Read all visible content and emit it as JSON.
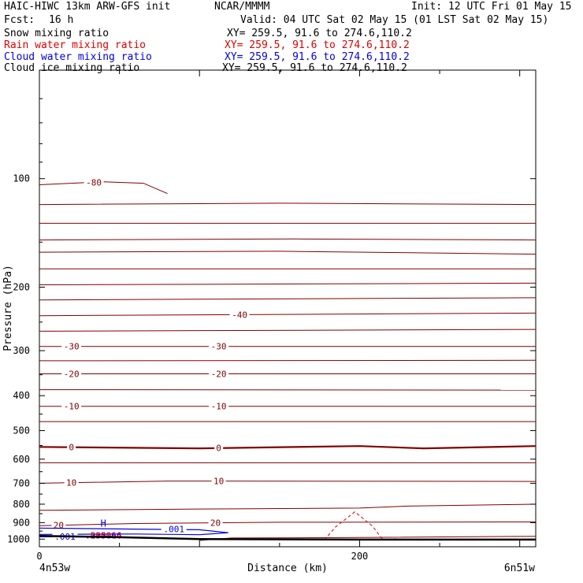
{
  "header": {
    "model_title": "HAIC-HIWC 13km ARW-GFS init",
    "org": "NCAR/MMMM",
    "init_text": "Init: 12 UTC Fri 01 May 15",
    "fcst_label": "Fcst:",
    "fcst_value": "16 h",
    "valid_text": "Valid: 04 UTC Sat 02 May 15 (01 LST Sat 02 May 15)",
    "fields": [
      {
        "name": "Snow mixing ratio",
        "xy": "XY= 259.5, 91.6 to 274.6,110.2",
        "color": "#000000"
      },
      {
        "name": "Rain water mixing ratio",
        "xy": "XY= 259.5, 91.6 to 274.6,110.2",
        "color": "#e00000"
      },
      {
        "name": "Cloud water mixing ratio",
        "xy": "XY= 259.5, 91.6 to 274.6,110.2",
        "color": "#0000e0"
      },
      {
        "name": "Cloud ice mixing ratio",
        "xy": "XY= 259.5, 91.6 to 274.6,110.2",
        "color": "#000000"
      }
    ]
  },
  "chart_data": {
    "type": "cross-section contour",
    "xlabel": "Distance (km)",
    "ylabel": "Pressure (hPa)",
    "xlim": [
      0,
      310
    ],
    "ylim": [
      1050,
      50
    ],
    "yscale": "log",
    "xticks": [
      0,
      200
    ],
    "yticks": [
      100,
      200,
      300,
      400,
      500,
      600,
      700,
      800,
      900,
      1000
    ],
    "left_endpoint": "4n53w",
    "right_endpoint": "6n51w",
    "colors": {
      "temperature": "#800000",
      "rain": "#e00000",
      "cloud_water": "#0000e0",
      "terrain": "#000000"
    },
    "temperature_contours": [
      {
        "value": -80,
        "label": "-80",
        "points": [
          [
            0,
            104
          ],
          [
            40,
            102
          ],
          [
            65,
            103
          ],
          [
            80,
            110
          ]
        ]
      },
      {
        "value": -70,
        "points": [
          [
            0,
            118
          ],
          [
            150,
            117
          ],
          [
            310,
            118
          ]
        ]
      },
      {
        "value": -65,
        "points": [
          [
            0,
            133
          ],
          [
            310,
            133
          ]
        ]
      },
      {
        "value": -60,
        "points": [
          [
            0,
            148
          ],
          [
            160,
            147
          ],
          [
            310,
            148
          ]
        ]
      },
      {
        "value": -55,
        "points": [
          [
            0,
            160
          ],
          [
            150,
            159
          ],
          [
            310,
            162
          ]
        ]
      },
      {
        "value": -50,
        "points": [
          [
            0,
            178
          ],
          [
            310,
            178
          ]
        ]
      },
      {
        "value": -45,
        "points": [
          [
            0,
            197
          ],
          [
            310,
            195
          ]
        ]
      },
      {
        "value": -42,
        "points": [
          [
            0,
            217
          ],
          [
            310,
            214
          ]
        ]
      },
      {
        "value": -40,
        "label": "-40",
        "points": [
          [
            0,
            240
          ],
          [
            310,
            236
          ]
        ]
      },
      {
        "value": -35,
        "points": [
          [
            0,
            265
          ],
          [
            310,
            262
          ]
        ]
      },
      {
        "value": -30,
        "label": "-30",
        "points": [
          [
            0,
            292
          ],
          [
            310,
            292
          ]
        ]
      },
      {
        "value": -25,
        "points": [
          [
            0,
            320
          ],
          [
            310,
            319
          ]
        ]
      },
      {
        "value": -20,
        "label": "-20",
        "points": [
          [
            0,
            348
          ],
          [
            310,
            348
          ]
        ]
      },
      {
        "value": -15,
        "points": [
          [
            0,
            385
          ],
          [
            310,
            386
          ]
        ]
      },
      {
        "value": -10,
        "label": "-10",
        "points": [
          [
            0,
            428
          ],
          [
            310,
            428
          ]
        ]
      },
      {
        "value": -5,
        "points": [
          [
            0,
            472
          ],
          [
            310,
            472
          ]
        ]
      },
      {
        "value": 0,
        "label": "0",
        "bold": true,
        "points": [
          [
            0,
            555
          ],
          [
            100,
            560
          ],
          [
            200,
            552
          ],
          [
            240,
            560
          ],
          [
            310,
            552
          ]
        ]
      },
      {
        "value": 5,
        "points": [
          [
            0,
            614
          ],
          [
            310,
            614
          ]
        ]
      },
      {
        "value": 10,
        "label": "10",
        "points": [
          [
            0,
            700
          ],
          [
            80,
            690
          ],
          [
            310,
            692
          ]
        ]
      },
      {
        "value": 15,
        "points": [
          [
            0,
            832
          ],
          [
            100,
            825
          ],
          [
            200,
            820
          ],
          [
            230,
            810
          ],
          [
            310,
            800
          ]
        ]
      },
      {
        "value": 20,
        "label": "20",
        "points": [
          [
            0,
            918
          ],
          [
            60,
            905
          ],
          [
            150,
            898
          ],
          [
            310,
            896
          ]
        ]
      },
      {
        "value": 25,
        "points": [
          [
            100,
            1008
          ],
          [
            120,
            993
          ],
          [
            200,
            990
          ],
          [
            310,
            982
          ]
        ]
      }
    ],
    "cloud_water_contours": [
      {
        "value": 0.001,
        "label": ".001",
        "points": [
          [
            0,
            932
          ],
          [
            60,
            938
          ],
          [
            100,
            942
          ],
          [
            118,
            960
          ],
          [
            100,
            972
          ],
          [
            60,
            968
          ],
          [
            0,
            970
          ]
        ]
      },
      {
        "value": 0.001,
        "label": ".001",
        "points": [
          [
            0,
            985
          ],
          [
            45,
            982
          ]
        ]
      }
    ],
    "cloud_water_max": {
      "label": "H",
      "value": ".235066",
      "x": 40,
      "p": 948
    },
    "rain_contours": [
      {
        "value": 0.001,
        "dashed": true,
        "points": [
          [
            178,
            1005
          ],
          [
            185,
            925
          ],
          [
            197,
            840
          ],
          [
            208,
            920
          ],
          [
            215,
            1010
          ]
        ]
      },
      {
        "value": 0.001,
        "dashed": true,
        "points": [
          [
            218,
            1005
          ],
          [
            222,
            998
          ],
          [
            226,
            1005
          ]
        ]
      }
    ],
    "rain_max": {
      "value": ".000014",
      "x": 40,
      "p": 975
    },
    "terrain": {
      "points": [
        [
          0,
          980
        ],
        [
          50,
          988
        ],
        [
          100,
          1000
        ],
        [
          200,
          1003
        ],
        [
          310,
          1003
        ]
      ]
    }
  }
}
